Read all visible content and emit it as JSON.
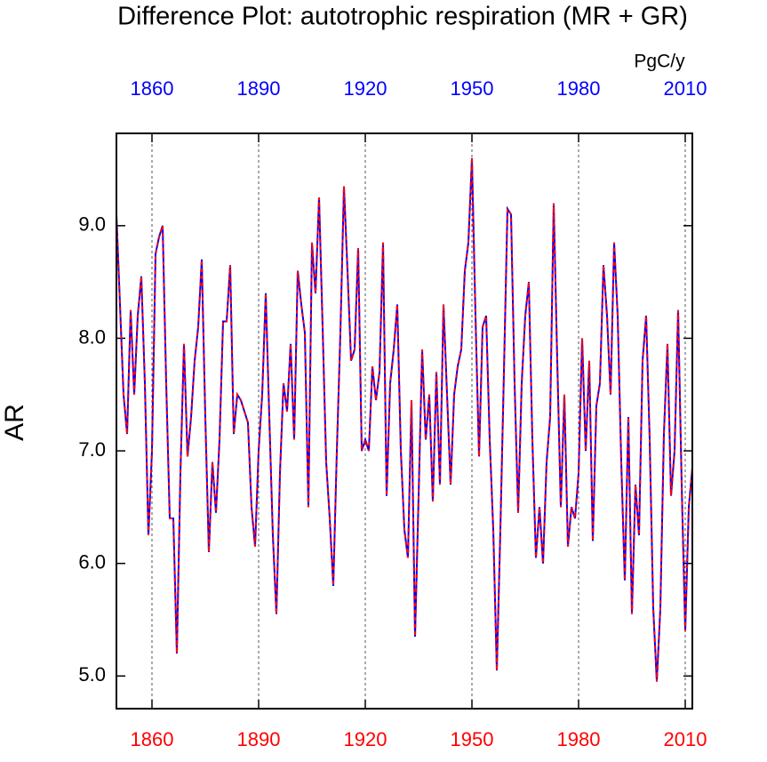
{
  "chart_data": {
    "type": "line",
    "title": "Difference Plot: autotrophic respiration (MR + GR)",
    "units": "PgC/y",
    "ylabel": "AR",
    "x": [
      1850,
      1851,
      1852,
      1853,
      1854,
      1855,
      1856,
      1857,
      1858,
      1859,
      1860,
      1861,
      1862,
      1863,
      1864,
      1865,
      1866,
      1867,
      1868,
      1869,
      1870,
      1871,
      1872,
      1873,
      1874,
      1875,
      1876,
      1877,
      1878,
      1879,
      1880,
      1881,
      1882,
      1883,
      1884,
      1885,
      1886,
      1887,
      1888,
      1889,
      1890,
      1891,
      1892,
      1893,
      1894,
      1895,
      1896,
      1897,
      1898,
      1899,
      1900,
      1901,
      1902,
      1903,
      1904,
      1905,
      1906,
      1907,
      1908,
      1909,
      1910,
      1911,
      1912,
      1913,
      1914,
      1915,
      1916,
      1917,
      1918,
      1919,
      1920,
      1921,
      1922,
      1923,
      1924,
      1925,
      1926,
      1927,
      1928,
      1929,
      1930,
      1931,
      1932,
      1933,
      1934,
      1935,
      1936,
      1937,
      1938,
      1939,
      1940,
      1941,
      1942,
      1943,
      1944,
      1945,
      1946,
      1947,
      1948,
      1949,
      1950,
      1951,
      1952,
      1953,
      1954,
      1955,
      1956,
      1957,
      1958,
      1959,
      1960,
      1961,
      1962,
      1963,
      1964,
      1965,
      1966,
      1967,
      1968,
      1969,
      1970,
      1971,
      1972,
      1973,
      1974,
      1975,
      1976,
      1977,
      1978,
      1979,
      1980,
      1981,
      1982,
      1983,
      1984,
      1985,
      1986,
      1987,
      1988,
      1989,
      1990,
      1991,
      1992,
      1993,
      1994,
      1995,
      1996,
      1997,
      1998,
      1999,
      2000,
      2001,
      2002,
      2003,
      2004,
      2005,
      2006,
      2007,
      2008,
      2009,
      2010,
      2011,
      2012
    ],
    "series": [
      {
        "color": "#0000ff",
        "style": "solid",
        "values": [
          9.1,
          8.3,
          7.5,
          7.15,
          8.25,
          7.5,
          8.2,
          8.55,
          7.6,
          6.25,
          7.0,
          8.75,
          8.9,
          9.0,
          7.6,
          6.4,
          6.4,
          5.2,
          6.8,
          7.95,
          6.95,
          7.3,
          7.8,
          8.1,
          8.7,
          7.3,
          6.1,
          6.9,
          6.45,
          7.1,
          8.15,
          8.15,
          8.65,
          7.15,
          7.5,
          7.45,
          7.35,
          7.25,
          6.5,
          6.15,
          7.0,
          7.5,
          8.4,
          7.3,
          6.25,
          5.55,
          6.8,
          7.6,
          7.35,
          7.95,
          7.1,
          8.6,
          8.3,
          8.05,
          6.5,
          8.85,
          8.4,
          9.25,
          8.1,
          6.9,
          6.4,
          5.8,
          7.0,
          8.05,
          9.35,
          8.6,
          7.8,
          7.9,
          8.8,
          7.0,
          7.1,
          7.0,
          7.75,
          7.45,
          7.7,
          8.85,
          6.6,
          7.6,
          7.9,
          8.3,
          7.0,
          6.3,
          6.05,
          7.45,
          5.35,
          6.6,
          7.9,
          7.1,
          7.5,
          6.55,
          7.7,
          6.7,
          8.3,
          7.5,
          6.7,
          7.5,
          7.75,
          7.9,
          8.6,
          8.85,
          9.6,
          8.2,
          6.95,
          8.1,
          8.2,
          7.1,
          6.3,
          5.05,
          6.3,
          7.7,
          9.15,
          9.1,
          7.6,
          6.45,
          7.6,
          8.2,
          8.5,
          7.1,
          6.05,
          6.5,
          6.0,
          6.9,
          7.3,
          9.2,
          7.8,
          6.5,
          7.5,
          6.15,
          6.5,
          6.4,
          6.8,
          8.0,
          7.0,
          7.8,
          6.2,
          7.4,
          7.6,
          8.65,
          8.2,
          7.5,
          8.85,
          8.2,
          6.9,
          5.85,
          7.3,
          5.55,
          6.7,
          6.25,
          7.8,
          8.2,
          7.1,
          5.6,
          4.95,
          5.6,
          7.15,
          7.95,
          6.6,
          7.0,
          8.25,
          6.7,
          5.4,
          6.5,
          6.85
        ]
      },
      {
        "color": "#ff0000",
        "style": "dashed",
        "values": [
          9.1,
          8.3,
          7.5,
          7.15,
          8.25,
          7.5,
          8.2,
          8.55,
          7.6,
          6.25,
          7.0,
          8.75,
          8.9,
          9.0,
          7.6,
          6.4,
          6.4,
          5.2,
          6.8,
          7.95,
          6.95,
          7.3,
          7.8,
          8.1,
          8.7,
          7.3,
          6.1,
          6.9,
          6.45,
          7.1,
          8.15,
          8.15,
          8.65,
          7.15,
          7.5,
          7.45,
          7.35,
          7.25,
          6.5,
          6.15,
          7.0,
          7.5,
          8.4,
          7.3,
          6.25,
          5.55,
          6.8,
          7.6,
          7.35,
          7.95,
          7.1,
          8.6,
          8.3,
          8.05,
          6.5,
          8.85,
          8.4,
          9.25,
          8.1,
          6.9,
          6.4,
          5.8,
          7.0,
          8.05,
          9.35,
          8.6,
          7.8,
          7.9,
          8.8,
          7.0,
          7.1,
          7.0,
          7.75,
          7.45,
          7.7,
          8.85,
          6.6,
          7.6,
          7.9,
          8.3,
          7.0,
          6.3,
          6.05,
          7.45,
          5.35,
          6.6,
          7.9,
          7.1,
          7.5,
          6.55,
          7.7,
          6.7,
          8.3,
          7.5,
          6.7,
          7.5,
          7.75,
          7.9,
          8.6,
          8.85,
          9.6,
          8.2,
          6.95,
          8.1,
          8.2,
          7.1,
          6.3,
          5.05,
          6.3,
          7.7,
          9.15,
          9.1,
          7.6,
          6.45,
          7.6,
          8.2,
          8.5,
          7.1,
          6.05,
          6.5,
          6.0,
          6.9,
          7.3,
          9.2,
          7.8,
          6.5,
          7.5,
          6.15,
          6.5,
          6.4,
          6.8,
          8.0,
          7.0,
          7.8,
          6.2,
          7.4,
          7.6,
          8.65,
          8.2,
          7.5,
          8.85,
          8.2,
          6.9,
          5.85,
          7.3,
          5.55,
          6.7,
          6.25,
          7.8,
          8.2,
          7.1,
          5.6,
          4.95,
          5.6,
          7.15,
          7.95,
          6.6,
          7.0,
          8.25,
          6.7,
          5.4,
          6.5,
          6.85
        ]
      }
    ],
    "xlim": [
      1850,
      2012
    ],
    "xticks": [
      1860,
      1890,
      1920,
      1950,
      1980,
      2010
    ],
    "xtick_color_bottom": "#ff0000",
    "xtick_color_top": "#0000ff",
    "ylim": [
      4.71,
      9.82
    ],
    "yticks": [
      {
        "value": 5,
        "label": "5.0"
      },
      {
        "value": 6,
        "label": "6.0"
      },
      {
        "value": 7,
        "label": "7.0"
      },
      {
        "value": 8,
        "label": "8.0"
      },
      {
        "value": 9,
        "label": "9.0"
      }
    ],
    "grid": "x"
  }
}
